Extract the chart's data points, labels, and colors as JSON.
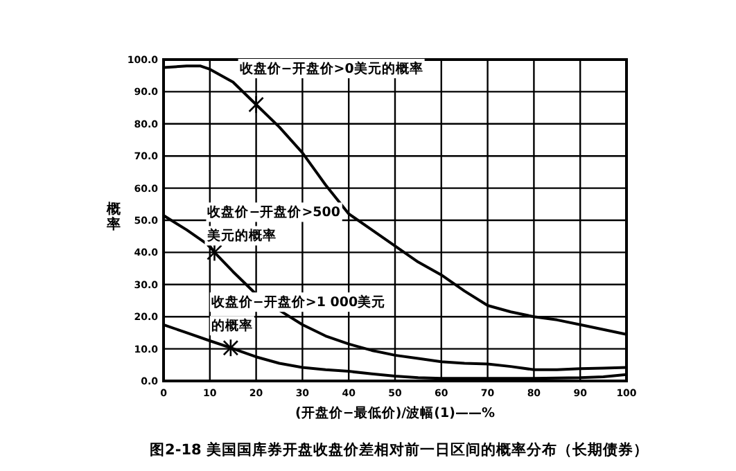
{
  "chart_data": {
    "type": "line",
    "title": "图2-18  美国国库券开盘收盘价差相对前一日区间的概率分布（长期债券）",
    "xlabel": "(开盘价−最低价)/波幅(1)——%",
    "ylabel": "概率",
    "xlim": [
      0,
      100
    ],
    "xticks": [
      0,
      10,
      20,
      30,
      40,
      50,
      60,
      70,
      80,
      90,
      100
    ],
    "ylim": [
      0,
      100
    ],
    "yticks": [
      {
        "value": 0,
        "label": "0.0"
      },
      {
        "value": 10,
        "label": "10.0"
      },
      {
        "value": 20,
        "label": "20.0"
      },
      {
        "value": 30,
        "label": "30.0"
      },
      {
        "value": 40,
        "label": "40.0"
      },
      {
        "value": 50,
        "label": "50.0"
      },
      {
        "value": 60,
        "label": "60.0"
      },
      {
        "value": 70,
        "label": "70.0"
      },
      {
        "value": 80,
        "label": "80.0"
      },
      {
        "value": 90,
        "label": "90.0"
      },
      {
        "value": 100,
        "label": "100.0"
      }
    ],
    "grid": true,
    "marker": "none",
    "line_style": "solid",
    "series": [
      {
        "color": "#000000",
        "x": [
          0,
          5,
          8,
          10,
          15,
          20,
          25,
          30,
          35,
          40,
          45,
          50,
          55,
          60,
          65,
          70,
          75,
          80,
          85,
          90,
          95,
          100
        ],
        "values": [
          97.5,
          98,
          98,
          97,
          93,
          86,
          79,
          71,
          61,
          52,
          47,
          42,
          37,
          33,
          28,
          23.5,
          21.5,
          20,
          19,
          17.5,
          16,
          14.5
        ]
      },
      {
        "color": "#000000",
        "x": [
          0,
          5,
          10,
          11,
          15,
          20,
          25,
          30,
          35,
          40,
          45,
          50,
          55,
          60,
          65,
          70,
          75,
          80,
          85,
          90,
          95,
          100
        ],
        "values": [
          51.5,
          47,
          42,
          40,
          34,
          27,
          22,
          17.5,
          14,
          11.5,
          9.5,
          8,
          7,
          6,
          5.5,
          5.3,
          4.5,
          3.5,
          3.5,
          3.8,
          4,
          4.2
        ]
      },
      {
        "color": "#000000",
        "x": [
          0,
          5,
          10,
          14.5,
          20,
          25,
          30,
          35,
          40,
          45,
          50,
          55,
          60,
          70,
          80,
          90,
          95,
          100
        ],
        "values": [
          17.5,
          15,
          12.5,
          10.3,
          7.5,
          5.5,
          4.2,
          3.5,
          3,
          2.2,
          1.5,
          1,
          0.8,
          0.8,
          0.8,
          1,
          1.3,
          2
        ]
      }
    ],
    "annotations": [
      {
        "text": "收盘价−开盘价>0美元的概率",
        "x": 20,
        "y": 86
      },
      {
        "text": "收盘价−开盘价>500美元的概率",
        "x": 11,
        "y": 40
      },
      {
        "text": "收盘价−开盘价>1 000美元的概率",
        "x": 14.5,
        "y": 10.3
      }
    ]
  }
}
